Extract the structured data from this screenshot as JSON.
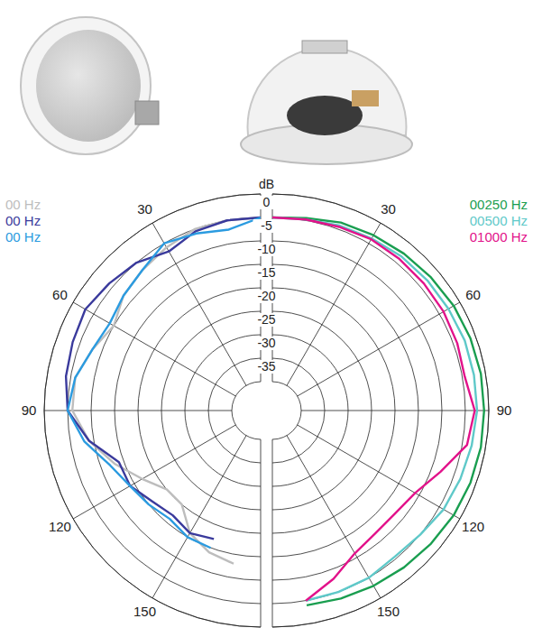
{
  "chart_data": [
    {
      "type": "polar",
      "y_label": "dB",
      "x": [
        0,
        10,
        20,
        30,
        40,
        50,
        60,
        70,
        80,
        90,
        100,
        110,
        120,
        130,
        140,
        150,
        160,
        170
      ],
      "xlim": [
        0,
        180
      ],
      "xticks": [
        30,
        60,
        90,
        120,
        150
      ],
      "ylim": [
        -40,
        0
      ],
      "yticks": [
        0,
        -5,
        -10,
        -15,
        -20,
        -25,
        -30,
        -35
      ],
      "grid": true,
      "legend": "top-left",
      "series": [
        {
          "name": "00 Hz",
          "color": "#bdbdbd",
          "values": [
            -5,
            -5,
            -5,
            -6,
            -7,
            -8,
            -10,
            -8,
            -6,
            -6,
            -9,
            -13,
            -17,
            -20,
            -20,
            -16,
            -14,
            -13
          ]
        },
        {
          "name": "00 Hz",
          "color": "#3a3a9c",
          "values": [
            -5,
            -5,
            -5.5,
            -7,
            -5,
            -4,
            -3,
            -3.5,
            -4,
            -5,
            -9,
            -14,
            -14,
            -16,
            -17,
            -16,
            -17,
            null
          ]
        },
        {
          "name": "00 Hz",
          "color": "#2b9be0",
          "values": [
            -5,
            -7,
            -6,
            -5,
            -7,
            -8,
            -9,
            -8,
            -6,
            -5,
            -8,
            -12,
            -14,
            -15,
            -16,
            -15,
            -15,
            null
          ]
        }
      ]
    },
    {
      "type": "polar",
      "x": [
        0,
        10,
        20,
        30,
        40,
        50,
        60,
        70,
        80,
        90,
        100,
        110,
        120,
        130,
        140,
        150,
        160,
        170
      ],
      "xlim": [
        0,
        180
      ],
      "xticks": [
        30,
        60,
        90,
        120,
        150
      ],
      "ylim": [
        -40,
        0
      ],
      "yticks": [
        0,
        -5,
        -10,
        -15,
        -20,
        -25,
        -30,
        -35
      ],
      "tick_labels": "x",
      "grid": true,
      "legend": "top-right",
      "series": [
        {
          "name": "00250 Hz",
          "color": "#1a9e50",
          "values": [
            -5,
            -4.5,
            -3.5,
            -3,
            -2.5,
            -2,
            -1.5,
            -1.2,
            -1,
            -1,
            -1,
            -1.2,
            -1.5,
            -2,
            -2.5,
            -3,
            -3.5,
            -4
          ]
        },
        {
          "name": "00500 Hz",
          "color": "#5fc9c9",
          "values": [
            -5,
            -4.8,
            -4.2,
            -3.8,
            -3.3,
            -3,
            -2.8,
            -2.5,
            -2.5,
            -2.5,
            -3,
            -3.5,
            -4,
            -5,
            -5.5,
            -5,
            -5,
            -5
          ]
        },
        {
          "name": "01000 Hz",
          "color": "#e2128a",
          "values": [
            -5,
            -4.8,
            -4.5,
            -4,
            -4,
            -4,
            -4,
            -4.2,
            -4.5,
            -3,
            -4,
            -8,
            -11,
            -12,
            -12,
            -11,
            -8,
            -5
          ]
        }
      ]
    }
  ]
}
